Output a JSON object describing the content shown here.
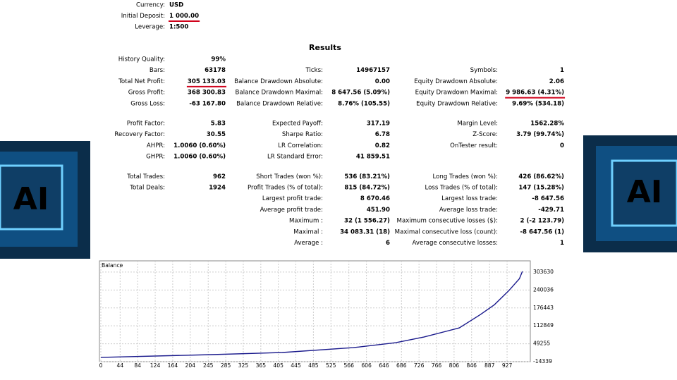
{
  "header": {
    "rows": [
      [
        "Currency:",
        "USD"
      ],
      [
        "Initial Deposit:",
        "1 000.00"
      ],
      [
        "Leverage:",
        "1:500"
      ]
    ]
  },
  "results_title": "Results",
  "report": {
    "sections": [
      [
        [
          [
            "History Quality:",
            "99%"
          ],
          null,
          null
        ],
        [
          [
            "Bars:",
            "63178"
          ],
          [
            "Ticks:",
            "14967157"
          ],
          [
            "Symbols:",
            "1"
          ]
        ],
        [
          [
            "Total Net Profit:",
            "305 133.03"
          ],
          [
            "Balance Drawdown Absolute:",
            "0.00"
          ],
          [
            "Equity Drawdown Absolute:",
            "2.06"
          ]
        ],
        [
          [
            "Gross Profit:",
            "368 300.83"
          ],
          [
            "Balance Drawdown Maximal:",
            "8 647.56 (5.09%)"
          ],
          [
            "Equity Drawdown Maximal:",
            "9 986.63 (4.31%)"
          ]
        ],
        [
          [
            "Gross Loss:",
            "-63 167.80"
          ],
          [
            "Balance Drawdown Relative:",
            "8.76% (105.55)"
          ],
          [
            "Equity Drawdown Relative:",
            "9.69% (534.18)"
          ]
        ]
      ],
      [
        [
          [
            "Profit Factor:",
            "5.83"
          ],
          [
            "Expected Payoff:",
            "317.19"
          ],
          [
            "Margin Level:",
            "1562.28%"
          ]
        ],
        [
          [
            "Recovery Factor:",
            "30.55"
          ],
          [
            "Sharpe Ratio:",
            "6.78"
          ],
          [
            "Z-Score:",
            "3.79 (99.74%)"
          ]
        ],
        [
          [
            "AHPR:",
            "1.0060 (0.60%)"
          ],
          [
            "LR Correlation:",
            "0.82"
          ],
          [
            "OnTester result:",
            "0"
          ]
        ],
        [
          [
            "GHPR:",
            "1.0060 (0.60%)"
          ],
          [
            "LR Standard Error:",
            "41 859.51"
          ],
          null
        ]
      ],
      [
        [
          [
            "Total Trades:",
            "962"
          ],
          [
            "Short Trades (won %):",
            "536 (83.21%)"
          ],
          [
            "Long Trades (won %):",
            "426 (86.62%)"
          ]
        ],
        [
          [
            "Total Deals:",
            "1924"
          ],
          [
            "Profit Trades (% of total):",
            "815 (84.72%)"
          ],
          [
            "Loss Trades (% of total):",
            "147 (15.28%)"
          ]
        ],
        [
          null,
          [
            "Largest profit trade:",
            "8 670.46"
          ],
          [
            "Largest loss trade:",
            "-8 647.56"
          ]
        ],
        [
          null,
          [
            "Average profit trade:",
            "451.90"
          ],
          [
            "Average loss trade:",
            "-429.71"
          ]
        ],
        [
          null,
          [
            "Maximum :",
            "32 (1 556.27)"
          ],
          [
            "Maximum consecutive losses ($):",
            "2 (-2 123.79)"
          ]
        ],
        [
          null,
          [
            "Maximal :",
            "34 083.31 (18)"
          ],
          [
            "Maximal consecutive loss (count):",
            "-8 647.56 (1)"
          ]
        ],
        [
          null,
          [
            "Average :",
            "6"
          ],
          [
            "Average consecutive losses:",
            "1"
          ]
        ]
      ]
    ]
  },
  "side_images": [
    {
      "label": "AI"
    },
    {
      "label": "AI"
    }
  ],
  "chart_data": {
    "type": "line",
    "x": [
      0,
      253,
      414,
      576,
      673,
      737,
      818,
      866,
      898,
      931,
      955,
      962
    ],
    "series": [
      {
        "name": "Balance",
        "color": "#1a1a8c",
        "values": [
          1000,
          10600,
          18100,
          35500,
          53000,
          73000,
          105400,
          152800,
          187700,
          237600,
          280000,
          306133
        ]
      }
    ],
    "xlim": [
      0,
      980
    ],
    "xticks": [
      0,
      44,
      84,
      124,
      164,
      204,
      245,
      285,
      325,
      365,
      405,
      445,
      485,
      525,
      566,
      606,
      646,
      686,
      726,
      766,
      806,
      846,
      887,
      927
    ],
    "ylim": [
      -14339,
      343500
    ],
    "yticks": [
      -14339,
      49255,
      112849,
      176443,
      240036,
      303630
    ],
    "grid": true
  }
}
